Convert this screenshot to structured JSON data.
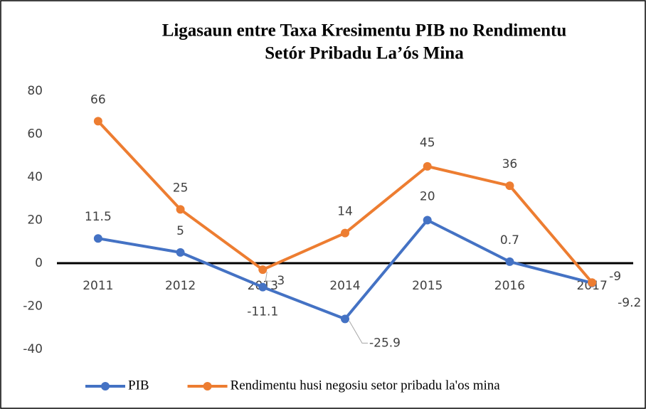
{
  "chart_data": {
    "type": "line",
    "title": "Ligasaun entre Taxa Kresimentu PIB no Rendimentu",
    "subtitle": "Setór Pribadu La’ós Mina",
    "categories": [
      "2011",
      "2012",
      "2013",
      "2014",
      "2015",
      "2016",
      "2017"
    ],
    "series": [
      {
        "name": "PIB",
        "color": "#4472c4",
        "values": [
          11.5,
          5,
          -11.1,
          -25.9,
          20,
          0.7,
          -9.2
        ]
      },
      {
        "name": "Rendimentu husi negosiu setor pribadu la'os mina",
        "color": "#ed7d31",
        "values": [
          66,
          25,
          -3,
          14,
          45,
          36,
          -9
        ]
      }
    ],
    "ylim": [
      -40,
      80
    ],
    "yticks": [
      -40,
      -20,
      0,
      20,
      40,
      60,
      80
    ],
    "grid": false,
    "legend": "bottom"
  }
}
